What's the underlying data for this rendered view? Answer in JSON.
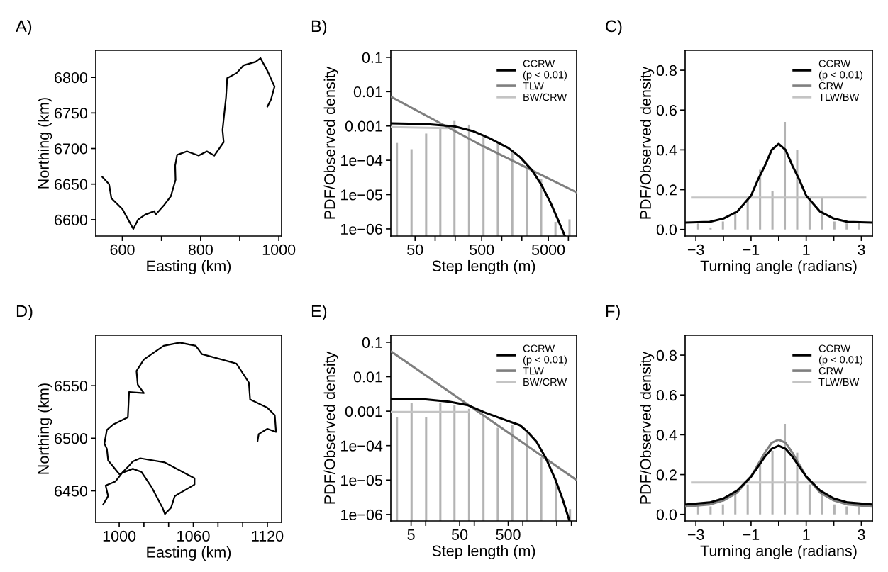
{
  "chart_data": [
    {
      "type": "line",
      "title": "A)",
      "xlabel": "Easting (km)",
      "ylabel": "Northing (km)",
      "x": [
        549,
        566,
        572,
        600,
        628,
        640,
        658,
        682,
        685,
        706,
        724,
        736,
        735,
        740,
        765,
        795,
        816,
        835,
        859,
        856,
        865,
        868,
        892,
        910,
        941,
        953,
        971,
        989,
        980,
        971
      ],
      "series": [
        {
          "color": "#000000",
          "values": [
            6660,
            6650,
            6630,
            6615,
            6587,
            6600,
            6607,
            6612,
            6607,
            6620,
            6633,
            6656,
            6676,
            6691,
            6696,
            6690,
            6696,
            6690,
            6709,
            6726,
            6772,
            6799,
            6806,
            6817,
            6822,
            6827,
            6809,
            6787,
            6769,
            6759
          ]
        }
      ],
      "xlim": [
        532,
        1007
      ],
      "ylim": [
        6577,
        6838
      ],
      "xticks": [
        600,
        {
          "value": 700,
          "label": null
        },
        800,
        {
          "value": 900,
          "label": null
        },
        1000
      ],
      "yticks": [
        6600,
        6650,
        6700,
        6750,
        6800
      ]
    },
    {
      "type": "line",
      "title": "B)",
      "xlabel": "Step length (m)",
      "ylabel": "PDF/Observed density",
      "log": "xy",
      "legend": "top right",
      "series": [
        {
          "type": "bar",
          "color": "#b3b3b3",
          "x": [
            26.7,
            44.2,
            73.3,
            119.6,
            195,
            323,
            532,
            874,
            1436,
            2400,
            3900,
            6400,
            10400
          ],
          "values": [
            0.00032,
            0.00021,
            0.0006,
            0.00083,
            0.0014,
            0.00109,
            0.00048,
            0.00032,
            0.0002,
            6.1e-05,
            2.8e-05,
            1.6e-06,
            1.9e-06
          ]
        },
        {
          "name": "BW/CRW",
          "color": "#c4c4c4",
          "x": [
            22.1,
            72.1,
            150
          ],
          "values": [
            0.00093,
            0.00089,
            0.00087
          ]
        },
        {
          "name": "TLW",
          "color": "#7f7f7f",
          "x": [
            22.1,
            500,
            13300
          ],
          "values": [
            0.007,
            0.00027,
            1.16e-05
          ]
        },
        {
          "name": "CCRW\n(p < 0.01)",
          "color": "#000000",
          "x": [
            22.1,
            72.1,
            195,
            368,
            651,
            1250,
            1880,
            2830,
            3900,
            5420,
            6940,
            8860
          ],
          "values": [
            0.00119,
            0.00114,
            0.00097,
            0.00071,
            0.00044,
            0.00023,
            0.000124,
            5.2e-05,
            2e-05,
            5.7e-06,
            1.9e-06,
            6.2e-07
          ]
        }
      ],
      "xlim": [
        21.6,
        13300
      ],
      "ylim": [
        6.2e-07,
        0.16
      ],
      "xticks": [
        50,
        {
          "value": 100,
          "label": null
        },
        {
          "value": 200,
          "label": null
        },
        500,
        {
          "value": 1000,
          "label": null
        },
        {
          "value": 2000,
          "label": null
        },
        5000,
        {
          "value": 10000,
          "label": null
        }
      ],
      "yticks": [
        0.1,
        0.01,
        0.001,
        {
          "value": 0.0001,
          "label": "1e−04"
        },
        {
          "value": 1e-05,
          "label": "1e−05"
        },
        {
          "value": 1e-06,
          "label": "1e−06"
        }
      ]
    },
    {
      "type": "line",
      "title": "C)",
      "xlabel": "Turning angle (radians)",
      "ylabel": "PDF/Observed density",
      "legend": "top right",
      "series": [
        {
          "type": "bar",
          "color": "#b3b3b3",
          "x": [
            -2.918,
            -2.468,
            -2.02,
            -1.571,
            -1.122,
            -0.673,
            -0.224,
            0.224,
            0.673,
            1.122,
            1.571,
            2.02,
            2.468,
            2.918
          ],
          "values": [
            0.03,
            0.01,
            0.04,
            0.08,
            0.15,
            0.3,
            0.195,
            0.54,
            0.4,
            0.16,
            0.16,
            0.04,
            0.03,
            0.04
          ]
        },
        {
          "name": "TLW/BW",
          "color": "#c4c4c4",
          "x": [
            -3.14,
            3.14
          ],
          "values": [
            0.16,
            0.16
          ]
        },
        {
          "name": "CRW",
          "color": "#7f7f7f"
        },
        {
          "name": "CCRW\n(p < 0.01)",
          "color": "#000000",
          "x": [
            -3.35,
            -2.5,
            -2,
            -1.5,
            -1,
            -0.75,
            -0.5,
            -0.25,
            0,
            0.25,
            0.5,
            0.75,
            1,
            1.5,
            2,
            2.5,
            3.35
          ],
          "values": [
            0.035,
            0.038,
            0.055,
            0.09,
            0.17,
            0.25,
            0.32,
            0.4,
            0.43,
            0.4,
            0.32,
            0.25,
            0.17,
            0.09,
            0.055,
            0.038,
            0.035
          ]
        }
      ],
      "xlim": [
        -3.39,
        3.4
      ],
      "ylim": [
        -0.033,
        0.9
      ],
      "xticks": [
        {
          "value": -3,
          "label": "−3"
        },
        {
          "value": -2,
          "label": null
        },
        {
          "value": -1,
          "label": "−1"
        },
        {
          "value": 0,
          "label": null
        },
        1,
        {
          "value": 2,
          "label": null
        },
        3
      ],
      "yticks": [
        {
          "value": 0,
          "label": "0.0"
        },
        0.2,
        0.4,
        0.6,
        0.8
      ]
    },
    {
      "type": "line",
      "title": "D)",
      "xlabel": "Easting (km)",
      "ylabel": "Northing (km)",
      "x": [
        987,
        991,
        989,
        997,
        1003,
        1008,
        1011,
        1017,
        1037,
        1061,
        1061,
        1045,
        1042,
        1037,
        1035,
        1026,
        1018,
        1011,
        1000,
        991,
        990,
        988,
        990,
        995,
        1007,
        1008,
        1020,
        1015,
        1014,
        1020,
        1036,
        1049,
        1062,
        1067,
        1089,
        1095,
        1105,
        1106,
        1120,
        1126,
        1127,
        1120,
        1113,
        1112
      ],
      "series": [
        {
          "color": "#000000",
          "values": [
            6437,
            6445,
            6455,
            6459,
            6468,
            6474,
            6478,
            6481,
            6477,
            6462,
            6456,
            6445,
            6434,
            6428,
            6434,
            6454,
            6468,
            6471,
            6466,
            6479,
            6490,
            6495,
            6508,
            6513,
            6520,
            6544,
            6543,
            6551,
            6564,
            6575,
            6588,
            6591,
            6588,
            6580,
            6573,
            6571,
            6553,
            6537,
            6529,
            6522,
            6506,
            6509,
            6504,
            6497
          ]
        }
      ],
      "xlim": [
        981,
        1131.5
      ],
      "ylim": [
        6420,
        6598
      ],
      "xticks": [
        1000,
        {
          "value": 1020,
          "label": null
        },
        {
          "value": 1040,
          "label": null
        },
        1060,
        {
          "value": 1080,
          "label": null
        },
        {
          "value": 1100,
          "label": null
        },
        1120
      ],
      "yticks": [
        6450,
        6500,
        6550
      ]
    },
    {
      "type": "line",
      "title": "E)",
      "xlabel": "Step length (m)",
      "ylabel": "PDF/Observed density",
      "log": "xy",
      "legend": "top right",
      "series": [
        {
          "type": "bar",
          "color": "#b3b3b3",
          "x": [
            2.56,
            5.11,
            10.2,
            20.0,
            39.1,
            78.2,
            154.6,
            305,
            605,
            1196,
            2390,
            4780,
            9350
          ],
          "values": [
            0.00067,
            0.00174,
            0.00067,
            0.00174,
            0.00148,
            0.00117,
            0.00079,
            0.00033,
            0.00039,
            0.00024,
            4.6e-05,
            1.03e-05,
            1.44e-06
          ]
        },
        {
          "name": "BW/CRW",
          "color": "#c4c4c4",
          "x": [
            1.98,
            10.0,
            30.6,
            74.7
          ],
          "values": [
            0.00095,
            0.00095,
            0.00095,
            0.00095
          ]
        },
        {
          "name": "TLW",
          "color": "#7f7f7f",
          "x": [
            1.98,
            160,
            12800
          ],
          "values": [
            0.053,
            0.00073,
            1e-05
          ]
        },
        {
          "name": "CCRW\n(p < 0.01)",
          "color": "#000000",
          "x": [
            1.98,
            10.0,
            30.6,
            74.7,
            163,
            400,
            875,
            1222,
            1913,
            2990,
            4680,
            6540,
            9140
          ],
          "values": [
            0.00231,
            0.0022,
            0.00188,
            0.00148,
            0.00092,
            0.00058,
            0.00039,
            0.00026,
            0.000129,
            4.3e-05,
            1.03e-05,
            2.9e-06,
            6.5e-07
          ]
        }
      ],
      "xlim": [
        1.91,
        12800
      ],
      "ylim": [
        6.5e-07,
        0.16
      ],
      "xticks": [
        5,
        {
          "value": 10,
          "label": null
        },
        50,
        {
          "value": 100,
          "label": null
        },
        500,
        {
          "value": 1000,
          "label": null
        },
        {
          "value": 5000,
          "label": null
        },
        {
          "value": 10000,
          "label": null
        }
      ],
      "yticks": [
        0.1,
        0.01,
        0.001,
        {
          "value": 0.0001,
          "label": "1e−04"
        },
        {
          "value": 1e-05,
          "label": "1e−05"
        },
        {
          "value": 1e-06,
          "label": "1e−06"
        }
      ]
    },
    {
      "type": "line",
      "title": "F)",
      "xlabel": "Turning angle (radians)",
      "ylabel": "PDF/Observed density",
      "legend": "top right",
      "series": [
        {
          "type": "bar",
          "color": "#b3b3b3",
          "x": [
            -2.918,
            -2.468,
            -2.02,
            -1.571,
            -1.122,
            -0.673,
            -0.224,
            0.224,
            0.673,
            1.122,
            1.571,
            2.02,
            2.468,
            2.918
          ],
          "values": [
            0.045,
            0.04,
            0.05,
            0.1,
            0.15,
            0.26,
            0.32,
            0.455,
            0.31,
            0.15,
            0.1,
            0.05,
            0.04,
            0.04
          ]
        },
        {
          "name": "TLW/BW",
          "color": "#c4c4c4",
          "x": [
            -3.14,
            3.14
          ],
          "values": [
            0.16,
            0.16
          ]
        },
        {
          "name": "CRW",
          "color": "#7f7f7f",
          "x": [
            -3.35,
            -2.5,
            -2,
            -1.5,
            -1,
            -0.75,
            -0.5,
            -0.25,
            0,
            0.25,
            0.5,
            0.75,
            1,
            1.5,
            2,
            2.5,
            3.35
          ],
          "values": [
            0.04,
            0.05,
            0.07,
            0.11,
            0.19,
            0.25,
            0.31,
            0.36,
            0.375,
            0.36,
            0.31,
            0.25,
            0.19,
            0.11,
            0.07,
            0.05,
            0.04
          ]
        },
        {
          "name": "CCRW\n(p < 0.01)",
          "color": "#000000",
          "x": [
            -3.35,
            -2.5,
            -2,
            -1.5,
            -1,
            -0.75,
            -0.5,
            -0.25,
            0,
            0.25,
            0.5,
            0.75,
            1,
            1.5,
            2,
            2.5,
            3.35
          ],
          "values": [
            0.05,
            0.06,
            0.08,
            0.12,
            0.19,
            0.24,
            0.29,
            0.33,
            0.345,
            0.33,
            0.29,
            0.24,
            0.19,
            0.12,
            0.08,
            0.06,
            0.05
          ]
        }
      ],
      "xlim": [
        -3.39,
        3.4
      ],
      "ylim": [
        -0.033,
        0.9
      ],
      "xticks": [
        {
          "value": -3,
          "label": "−3"
        },
        {
          "value": -2,
          "label": null
        },
        {
          "value": -1,
          "label": "−1"
        },
        {
          "value": 0,
          "label": null
        },
        1,
        {
          "value": 2,
          "label": null
        },
        3
      ],
      "yticks": [
        {
          "value": 0,
          "label": "0.0"
        },
        0.2,
        0.4,
        0.6,
        0.8
      ]
    }
  ]
}
